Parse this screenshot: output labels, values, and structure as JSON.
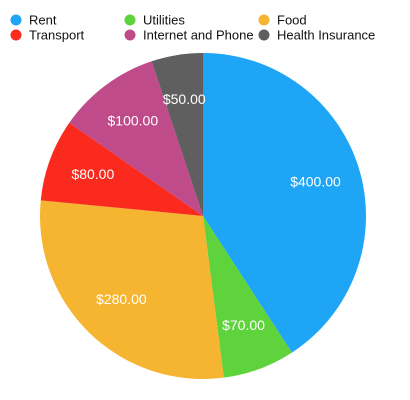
{
  "chart_data": {
    "type": "pie",
    "categories": [
      "Rent",
      "Utilities",
      "Food",
      "Transport",
      "Internet and Phone",
      "Health Insurance"
    ],
    "values": [
      400,
      70,
      280,
      80,
      100,
      50
    ],
    "value_labels": [
      "$400.00",
      "$70.00",
      "$280.00",
      "$80.00",
      "$100.00",
      "$50.00"
    ],
    "colors": [
      "#1fa5f5",
      "#5fd33b",
      "#f6b530",
      "#fb2a1f",
      "#bf4b8a",
      "#5f5f5f"
    ],
    "legend": "top"
  }
}
